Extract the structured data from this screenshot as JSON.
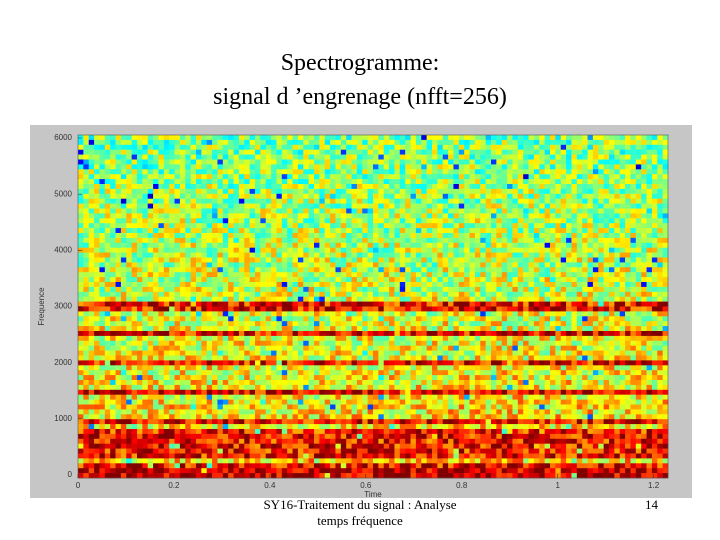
{
  "slide": {
    "title": [
      "Spectrogramme:",
      "signal d ’engrenage (nfft=256)"
    ],
    "footer": [
      "SY16-Traitement du signal : Analyse",
      "temps fréquence"
    ],
    "page_number": "14"
  },
  "chart_data": {
    "type": "spectrogram",
    "xlabel": "Time",
    "ylabel": "Frequence",
    "xlim": [
      0,
      1.23
    ],
    "ylim": [
      0,
      6000
    ],
    "xticks": [
      0,
      0.2,
      0.4,
      0.6,
      0.8,
      1,
      1.2
    ],
    "yticks": [
      0,
      1000,
      2000,
      3000,
      4000,
      5000,
      6000
    ]
  }
}
